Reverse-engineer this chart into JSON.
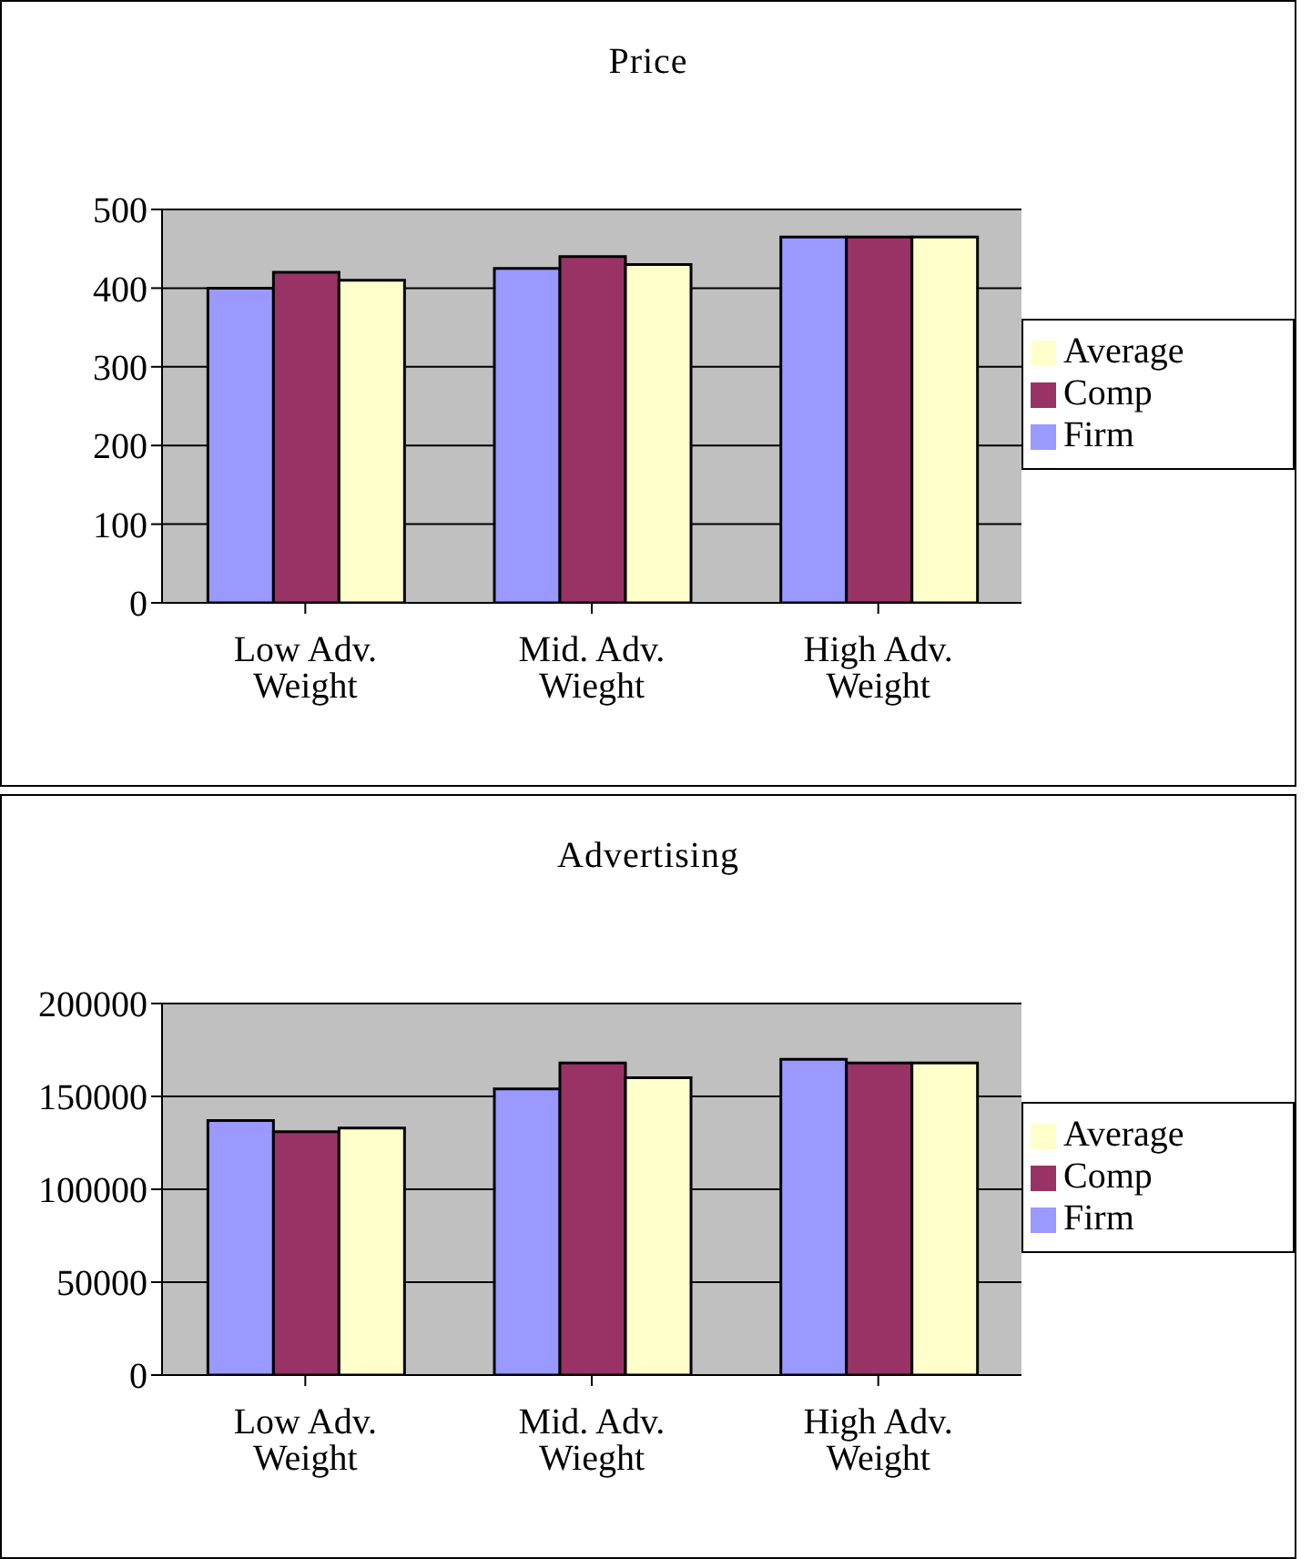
{
  "chart_data": [
    {
      "type": "bar",
      "title": "Price",
      "categories": [
        "Low Adv. Weight",
        "Mid. Adv. Wieght",
        "High Adv. Weight"
      ],
      "series": [
        {
          "name": "Firm",
          "color": "#9999ff",
          "values": [
            400,
            425,
            465
          ]
        },
        {
          "name": "Comp",
          "color": "#993366",
          "values": [
            420,
            440,
            465
          ]
        },
        {
          "name": "Average",
          "color": "#ffffcc",
          "values": [
            410,
            430,
            465
          ]
        }
      ],
      "ylim": [
        0,
        500
      ],
      "yticks": [
        0,
        100,
        200,
        300,
        400,
        500
      ],
      "grid": "y",
      "legend": "right"
    },
    {
      "type": "bar",
      "title": "Advertising",
      "categories": [
        "Low Adv. Weight",
        "Mid. Adv. Wieght",
        "High Adv. Weight"
      ],
      "series": [
        {
          "name": "Firm",
          "color": "#9999ff",
          "values": [
            137000,
            154000,
            170000
          ]
        },
        {
          "name": "Comp",
          "color": "#993366",
          "values": [
            131000,
            168000,
            168000
          ]
        },
        {
          "name": "Average",
          "color": "#ffffcc",
          "values": [
            133000,
            160000,
            168000
          ]
        }
      ],
      "ylim": [
        0,
        200000
      ],
      "yticks": [
        0,
        50000,
        100000,
        150000,
        200000
      ],
      "grid": "y",
      "legend": "right"
    }
  ]
}
